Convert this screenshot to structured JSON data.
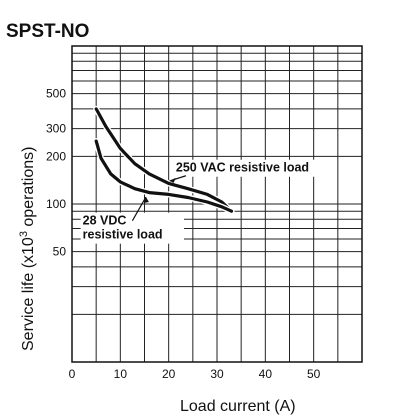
{
  "chart_data": {
    "type": "line",
    "title": "SPST-NO",
    "xlabel": "Load current (A)",
    "ylabel": "Service life (x10³ operations)",
    "ylabel_parts": [
      "Service life (x10",
      "3",
      " operations)"
    ],
    "xscale": "linear",
    "yscale": "log",
    "xlim": [
      0,
      60
    ],
    "ylim": [
      10,
      1000
    ],
    "xticks": [
      0,
      10,
      20,
      30,
      40,
      50
    ],
    "xtick_labels": [
      "0",
      "10",
      "20",
      "30",
      "40",
      "50"
    ],
    "yticks": [
      50,
      100,
      200,
      300,
      500
    ],
    "ytick_labels": [
      "50",
      "100",
      "200",
      "300",
      "500"
    ],
    "grid": true,
    "legend": "none",
    "series": [
      {
        "name": "250 VAC resistive load",
        "label_lines": [
          "250 VAC resistive load"
        ],
        "x": [
          5,
          7,
          10,
          13,
          16,
          20,
          24,
          28,
          31,
          33
        ],
        "y": [
          400,
          310,
          225,
          180,
          155,
          135,
          125,
          115,
          103,
          90
        ]
      },
      {
        "name": "28 VDC resistive load",
        "label_lines": [
          "28 VDC",
          "resistive load"
        ],
        "x": [
          5,
          6,
          8,
          10,
          13,
          16,
          20,
          24,
          28,
          31,
          33
        ],
        "y": [
          250,
          195,
          155,
          138,
          125,
          118,
          115,
          110,
          103,
          96,
          90
        ]
      }
    ]
  }
}
